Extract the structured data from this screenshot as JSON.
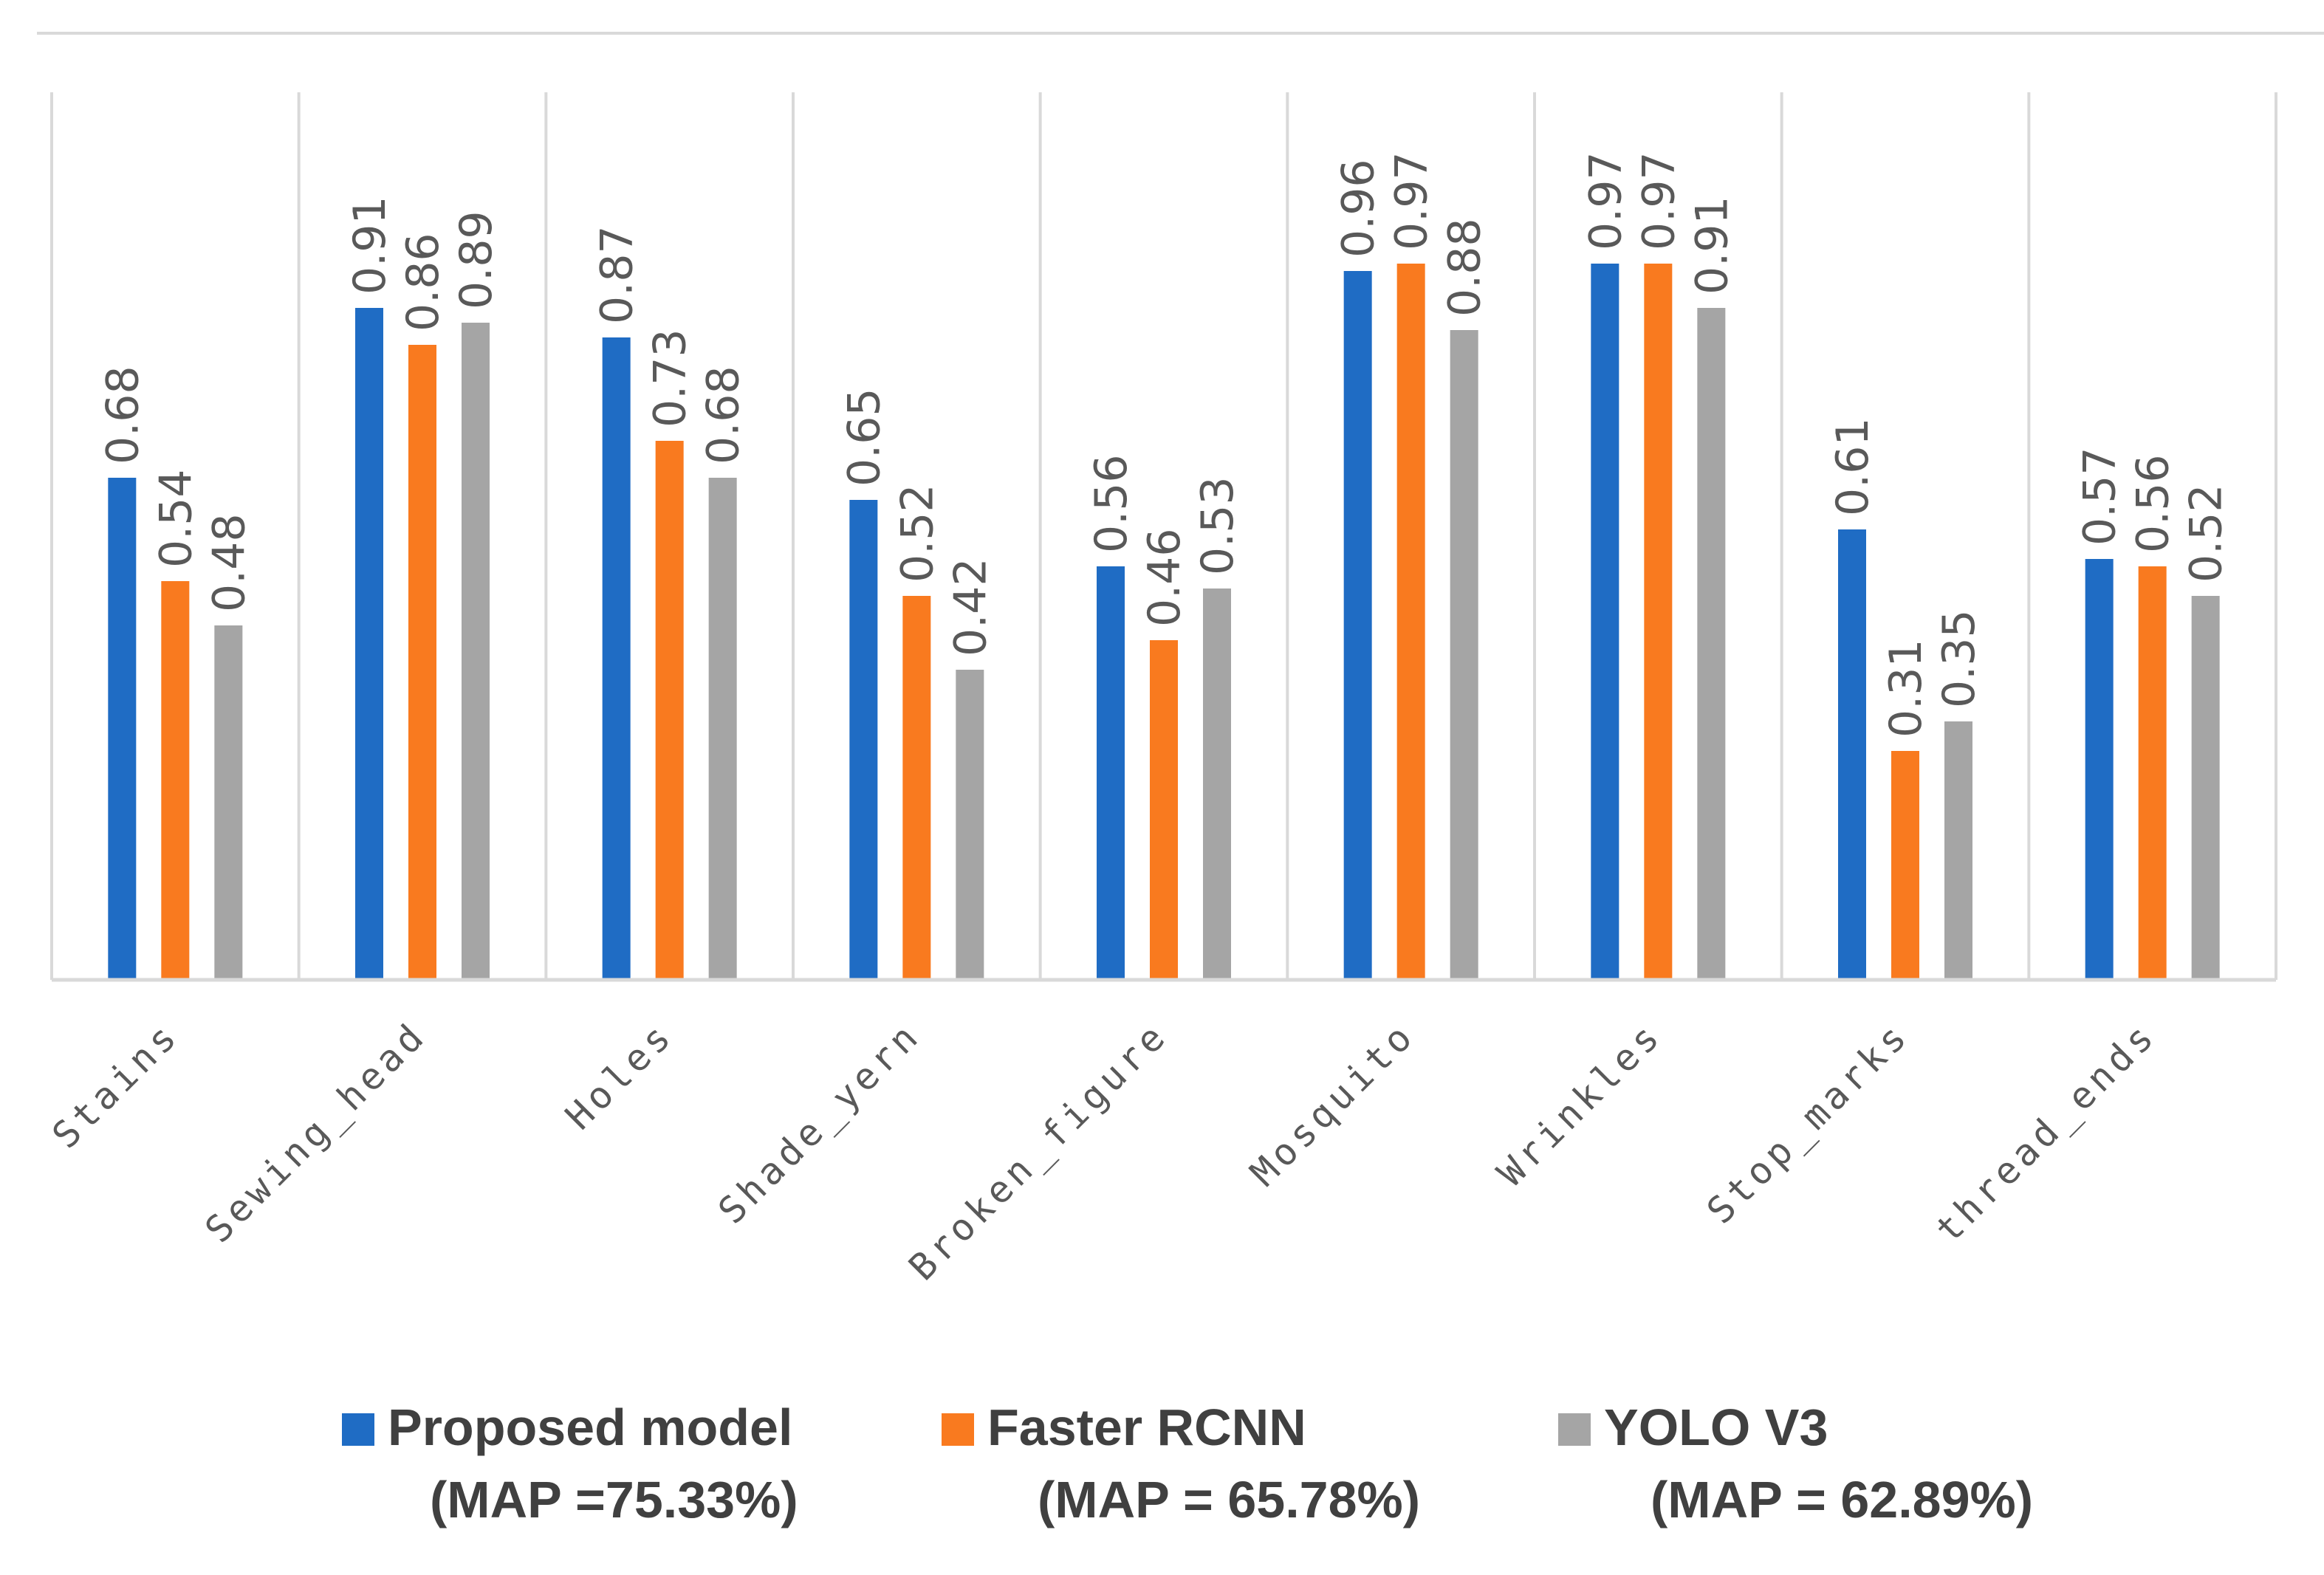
{
  "chart_data": {
    "type": "bar",
    "title": "",
    "xlabel": "",
    "ylabel": "",
    "ylim": [
      0,
      1.2
    ],
    "grid": false,
    "categories": [
      "Stains",
      "Sewing_head",
      "Holes",
      "Shade_yern",
      "Broken_figure",
      "Mosquito",
      "Wrinkles",
      "Stop_marks",
      "thread_ends"
    ],
    "series": [
      {
        "name": "Proposed model",
        "map": "(MAP =75.33%)",
        "color": "#1F6CC4",
        "values": [
          0.68,
          0.91,
          0.87,
          0.65,
          0.56,
          0.96,
          0.97,
          0.61,
          0.57
        ]
      },
      {
        "name": "Faster RCNN",
        "map": "(MAP = 65.78%)",
        "color": "#F97A1F",
        "values": [
          0.54,
          0.86,
          0.73,
          0.52,
          0.46,
          0.97,
          0.97,
          0.31,
          0.56
        ]
      },
      {
        "name": "YOLO V3",
        "map": "(MAP = 62.89%)",
        "color": "#A5A5A5",
        "values": [
          0.48,
          0.89,
          0.68,
          0.42,
          0.53,
          0.88,
          0.91,
          0.35,
          0.52
        ]
      }
    ],
    "legend_position": "bottom"
  }
}
